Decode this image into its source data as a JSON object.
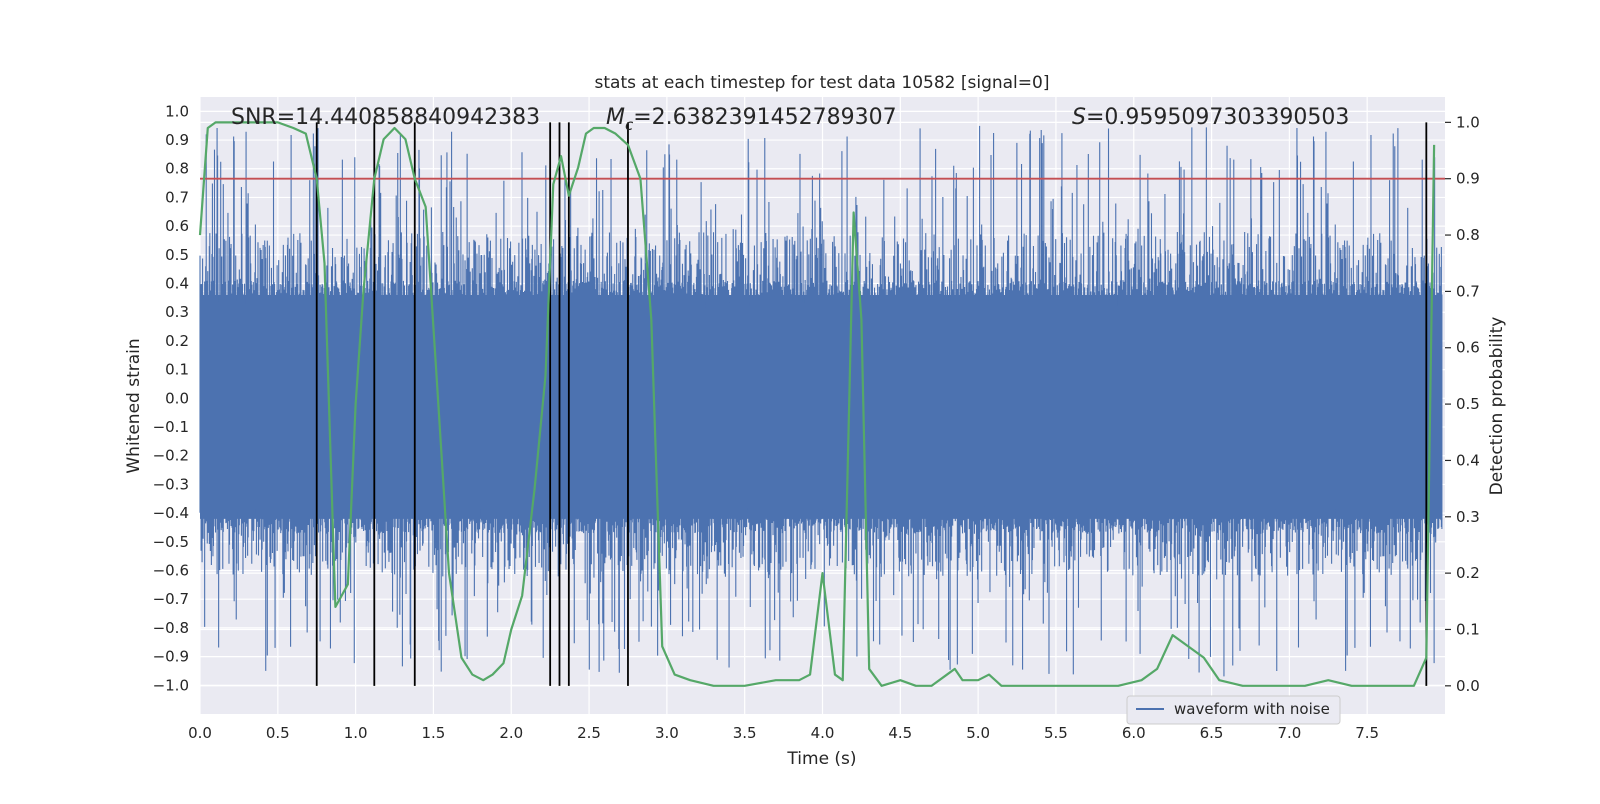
{
  "chart_data": {
    "type": "line",
    "title": "stats at each timestep for test data 10582 [signal=0]",
    "xlabel": "Time (s)",
    "ylabel": "Whitened strain",
    "ylabel_right": "Detection probability",
    "xlim": [
      0,
      8
    ],
    "ylim": [
      -1.1,
      1.05
    ],
    "ylim_right": [
      -0.05,
      1.045
    ],
    "x_ticks": [
      0.0,
      0.5,
      1.0,
      1.5,
      2.0,
      2.5,
      3.0,
      3.5,
      4.0,
      4.5,
      5.0,
      5.5,
      6.0,
      6.5,
      7.0,
      7.5
    ],
    "x_tick_labels": [
      "0.0",
      "0.5",
      "1.0",
      "1.5",
      "2.0",
      "2.5",
      "3.0",
      "3.5",
      "4.0",
      "4.5",
      "5.0",
      "5.5",
      "6.0",
      "6.5",
      "7.0",
      "7.5"
    ],
    "y_ticks": [
      1.0,
      0.9,
      0.8,
      0.7,
      0.6,
      0.5,
      0.4,
      0.3,
      0.2,
      0.1,
      0.0,
      -0.1,
      -0.2,
      -0.3,
      -0.4,
      -0.5,
      -0.6,
      -0.7,
      -0.8,
      -0.9,
      -1.0
    ],
    "y_tick_labels": [
      "1.0",
      "0.9",
      "0.8",
      "0.7",
      "0.6",
      "0.5",
      "0.4",
      "0.3",
      "0.2",
      "0.1",
      "0.0",
      "−0.1",
      "−0.2",
      "−0.3",
      "−0.4",
      "−0.5",
      "−0.6",
      "−0.7",
      "−0.8",
      "−0.9",
      "−1.0"
    ],
    "y_right_ticks": [
      1.0,
      0.9,
      0.8,
      0.7,
      0.6,
      0.5,
      0.4,
      0.3,
      0.2,
      0.1,
      0.0
    ],
    "y_right_tick_labels": [
      "1.0",
      "0.9",
      "0.8",
      "0.7",
      "0.6",
      "0.5",
      "0.4",
      "0.3",
      "0.2",
      "0.1",
      "0.0"
    ],
    "grid": true,
    "legend": {
      "location": "lower-right",
      "entries": [
        "waveform with noise"
      ]
    },
    "annotations": {
      "snr_text": "SNR=14.440858840942383",
      "mc_symbol": "M",
      "mc_subscript": "c",
      "mc_value": "=2.6382391452789307",
      "s_symbol": "S",
      "s_value": "=0.9595097303390503"
    },
    "series": [
      {
        "name": "waveform with noise",
        "axis": "left",
        "color": "#4c72b0",
        "kind": "noise-band",
        "x_range": [
          0.0,
          7.98
        ],
        "dense_band": [
          -0.42,
          0.36
        ],
        "frequent_excursions": [
          -0.62,
          0.58
        ],
        "extremes": [
          -0.97,
          0.95
        ]
      },
      {
        "name": "",
        "axis": "right",
        "color": "#55a868",
        "x": [
          0.0,
          0.05,
          0.1,
          0.2,
          0.3,
          0.4,
          0.5,
          0.6,
          0.68,
          0.75,
          0.8,
          0.87,
          0.95,
          1.0,
          1.05,
          1.12,
          1.18,
          1.25,
          1.32,
          1.38,
          1.45,
          1.52,
          1.6,
          1.68,
          1.75,
          1.82,
          1.88,
          1.95,
          2.0,
          2.07,
          2.15,
          2.22,
          2.27,
          2.32,
          2.37,
          2.43,
          2.48,
          2.53,
          2.6,
          2.67,
          2.75,
          2.83,
          2.9,
          2.97,
          3.05,
          3.15,
          3.3,
          3.5,
          3.7,
          3.85,
          3.92,
          4.0,
          4.08,
          4.13,
          4.2,
          4.25,
          4.3,
          4.38,
          4.5,
          4.6,
          4.7,
          4.8,
          4.85,
          4.9,
          5.0,
          5.07,
          5.15,
          5.3,
          5.5,
          5.7,
          5.9,
          6.05,
          6.15,
          6.25,
          6.35,
          6.45,
          6.55,
          6.7,
          6.9,
          7.1,
          7.25,
          7.4,
          7.6,
          7.8,
          7.88,
          7.93
        ],
        "values": [
          0.8,
          0.99,
          1.0,
          1.0,
          1.0,
          1.0,
          1.0,
          0.99,
          0.98,
          0.9,
          0.75,
          0.14,
          0.18,
          0.5,
          0.7,
          0.9,
          0.97,
          0.99,
          0.97,
          0.9,
          0.85,
          0.55,
          0.2,
          0.05,
          0.02,
          0.01,
          0.02,
          0.04,
          0.1,
          0.16,
          0.35,
          0.55,
          0.89,
          0.94,
          0.87,
          0.92,
          0.98,
          0.99,
          0.99,
          0.98,
          0.96,
          0.9,
          0.65,
          0.07,
          0.02,
          0.01,
          0.0,
          0.0,
          0.01,
          0.01,
          0.02,
          0.2,
          0.02,
          0.01,
          0.84,
          0.65,
          0.03,
          0.0,
          0.01,
          0.0,
          0.0,
          0.02,
          0.03,
          0.01,
          0.01,
          0.02,
          0.0,
          0.0,
          0.0,
          0.0,
          0.0,
          0.01,
          0.03,
          0.09,
          0.07,
          0.05,
          0.01,
          0.0,
          0.0,
          0.0,
          0.01,
          0.0,
          0.0,
          0.0,
          0.05,
          0.96
        ]
      }
    ],
    "threshold_line": {
      "axis": "right",
      "value": 0.9,
      "color": "#c44e52"
    },
    "vertical_lines": {
      "axis": "right",
      "color": "#000000",
      "y_range": [
        0.0,
        1.0
      ],
      "x": [
        0.75,
        1.12,
        1.38,
        2.25,
        2.31,
        2.37,
        2.75,
        7.88
      ]
    }
  }
}
